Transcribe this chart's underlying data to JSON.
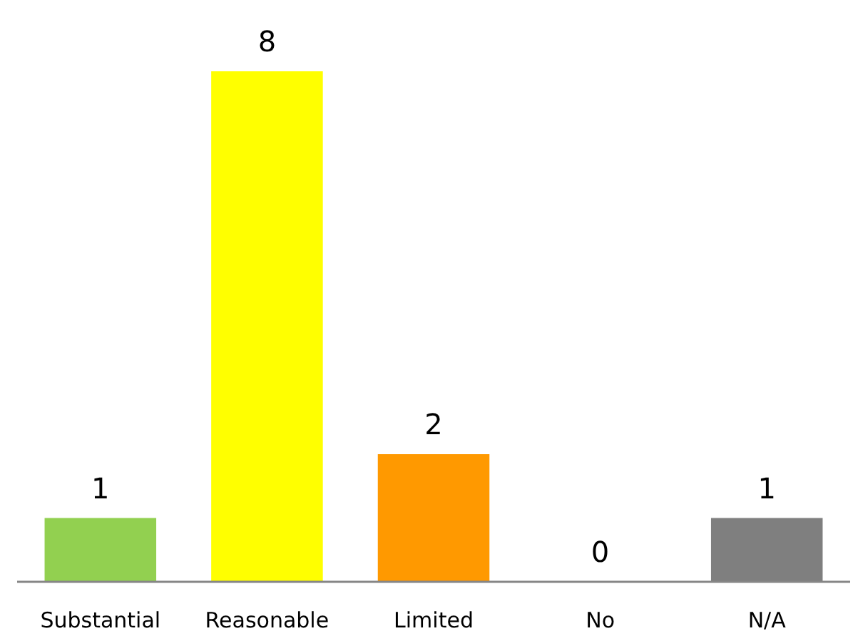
{
  "chart_data": {
    "type": "bar",
    "categories": [
      "Substantial",
      "Reasonable",
      "Limited",
      "No",
      "N/A"
    ],
    "values": [
      1,
      8,
      2,
      0,
      1
    ],
    "colors": [
      "#92d050",
      "#ffff00",
      "#ff9900",
      "#ff0000",
      "#7f7f7f"
    ],
    "data_labels": true
  }
}
